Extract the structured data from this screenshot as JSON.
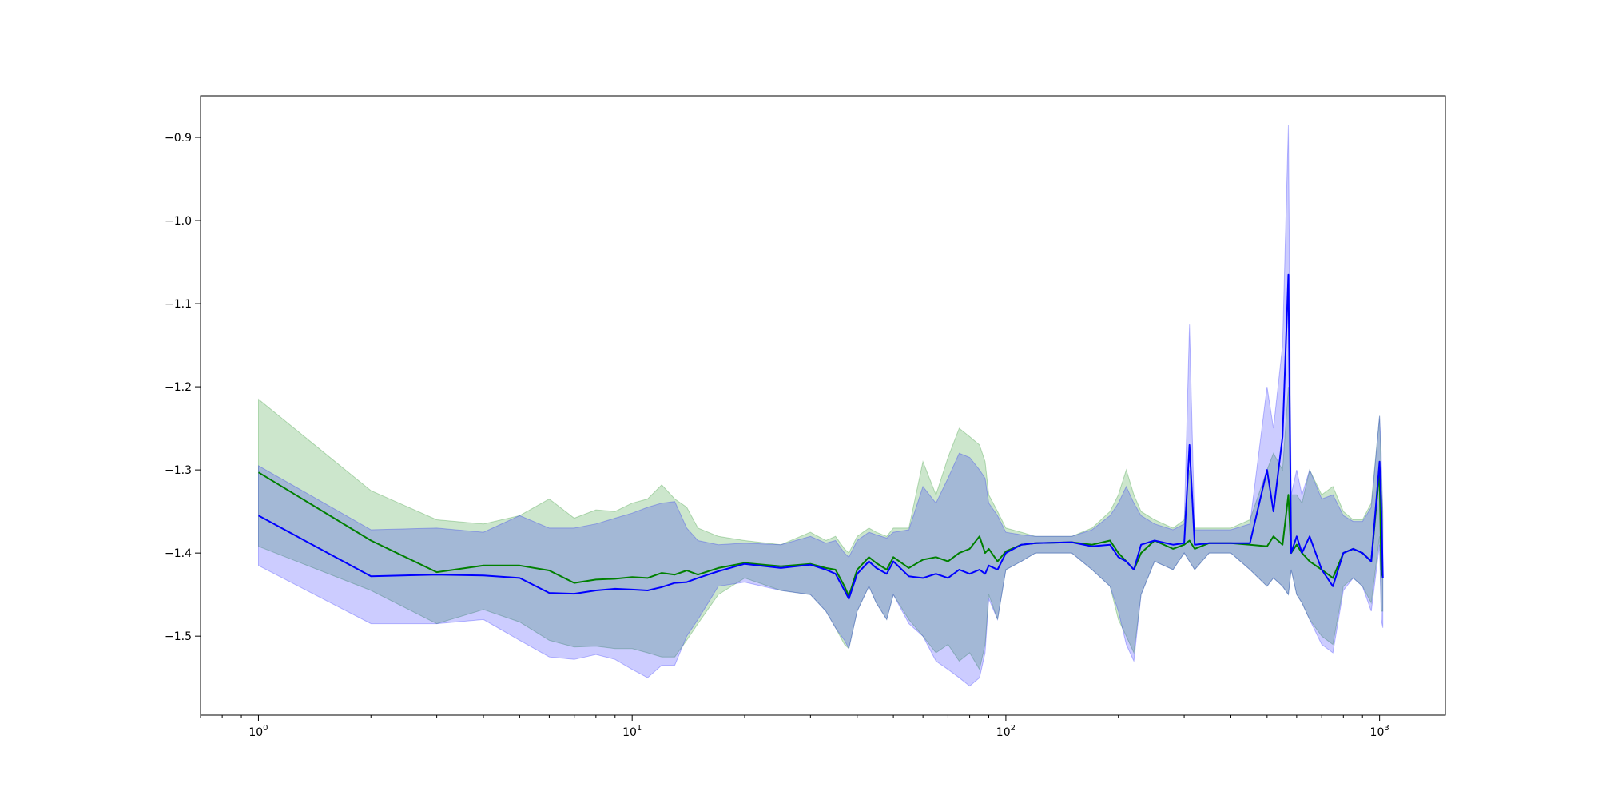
{
  "chart_data": {
    "type": "line",
    "title": "",
    "xlabel": "",
    "ylabel": "",
    "xscale": "log",
    "xlim": [
      0.7,
      1500
    ],
    "ylim": [
      -1.595,
      -0.85
    ],
    "grid": false,
    "legend": "none",
    "x_ticks": [
      {
        "value": 1,
        "base": "10",
        "exp": "0"
      },
      {
        "value": 10,
        "base": "10",
        "exp": "1"
      },
      {
        "value": 100,
        "base": "10",
        "exp": "2"
      },
      {
        "value": 1000,
        "base": "10",
        "exp": "3"
      }
    ],
    "y_ticks": [
      {
        "value": -0.9,
        "label": "−0.9"
      },
      {
        "value": -1.0,
        "label": "−1.0"
      },
      {
        "value": -1.1,
        "label": "−1.1"
      },
      {
        "value": -1.2,
        "label": "−1.2"
      },
      {
        "value": -1.3,
        "label": "−1.3"
      },
      {
        "value": -1.4,
        "label": "−1.4"
      },
      {
        "value": -1.5,
        "label": "−1.5"
      }
    ],
    "series": [
      {
        "color": "#008000",
        "band_color": "#008000",
        "x": [
          1,
          2,
          3,
          4,
          5,
          6,
          7,
          8,
          9,
          10,
          11,
          12,
          13,
          14,
          15,
          17,
          20,
          25,
          30,
          33,
          35,
          37,
          38,
          40,
          43,
          45,
          48,
          50,
          55,
          60,
          65,
          70,
          75,
          80,
          85,
          88,
          90,
          95,
          100,
          110,
          120,
          150,
          170,
          190,
          200,
          210,
          220,
          230,
          250,
          280,
          300,
          310,
          320,
          350,
          400,
          450,
          500,
          520,
          550,
          570,
          580,
          600,
          620,
          650,
          700,
          750,
          800,
          850,
          900,
          950,
          1000,
          1010,
          1020
        ],
        "y": [
          -1.303,
          -1.385,
          -1.423,
          -1.415,
          -1.415,
          -1.421,
          -1.436,
          -1.432,
          -1.431,
          -1.429,
          -1.43,
          -1.424,
          -1.426,
          -1.421,
          -1.426,
          -1.418,
          -1.412,
          -1.416,
          -1.413,
          -1.418,
          -1.42,
          -1.44,
          -1.452,
          -1.42,
          -1.405,
          -1.412,
          -1.42,
          -1.405,
          -1.418,
          -1.408,
          -1.405,
          -1.41,
          -1.4,
          -1.395,
          -1.38,
          -1.4,
          -1.395,
          -1.41,
          -1.398,
          -1.39,
          -1.388,
          -1.387,
          -1.39,
          -1.385,
          -1.4,
          -1.41,
          -1.42,
          -1.4,
          -1.385,
          -1.395,
          -1.39,
          -1.385,
          -1.395,
          -1.388,
          -1.388,
          -1.39,
          -1.392,
          -1.38,
          -1.39,
          -1.33,
          -1.4,
          -1.39,
          -1.4,
          -1.41,
          -1.42,
          -1.43,
          -1.4,
          -1.395,
          -1.4,
          -1.41,
          -1.3,
          -1.42,
          -1.43
        ],
        "lower": [
          -1.392,
          -1.445,
          -1.485,
          -1.468,
          -1.483,
          -1.505,
          -1.513,
          -1.512,
          -1.515,
          -1.515,
          -1.52,
          -1.525,
          -1.525,
          -1.505,
          -1.485,
          -1.45,
          -1.43,
          -1.445,
          -1.45,
          -1.47,
          -1.49,
          -1.51,
          -1.515,
          -1.47,
          -1.44,
          -1.46,
          -1.48,
          -1.45,
          -1.48,
          -1.5,
          -1.52,
          -1.51,
          -1.53,
          -1.52,
          -1.54,
          -1.51,
          -1.45,
          -1.48,
          -1.42,
          -1.41,
          -1.4,
          -1.4,
          -1.42,
          -1.44,
          -1.48,
          -1.5,
          -1.52,
          -1.45,
          -1.41,
          -1.42,
          -1.4,
          -1.41,
          -1.42,
          -1.4,
          -1.4,
          -1.42,
          -1.44,
          -1.43,
          -1.44,
          -1.45,
          -1.42,
          -1.45,
          -1.46,
          -1.48,
          -1.5,
          -1.51,
          -1.44,
          -1.43,
          -1.44,
          -1.46,
          -1.38,
          -1.47,
          -1.47
        ],
        "upper": [
          -1.215,
          -1.325,
          -1.36,
          -1.365,
          -1.355,
          -1.335,
          -1.358,
          -1.348,
          -1.35,
          -1.34,
          -1.335,
          -1.318,
          -1.335,
          -1.345,
          -1.37,
          -1.38,
          -1.385,
          -1.39,
          -1.375,
          -1.385,
          -1.38,
          -1.395,
          -1.4,
          -1.38,
          -1.37,
          -1.375,
          -1.38,
          -1.37,
          -1.37,
          -1.29,
          -1.33,
          -1.285,
          -1.25,
          -1.26,
          -1.27,
          -1.29,
          -1.33,
          -1.35,
          -1.37,
          -1.375,
          -1.38,
          -1.38,
          -1.37,
          -1.35,
          -1.33,
          -1.3,
          -1.33,
          -1.35,
          -1.36,
          -1.37,
          -1.36,
          -1.3,
          -1.37,
          -1.37,
          -1.37,
          -1.36,
          -1.3,
          -1.28,
          -1.3,
          -1.2,
          -1.33,
          -1.33,
          -1.34,
          -1.3,
          -1.33,
          -1.32,
          -1.35,
          -1.36,
          -1.36,
          -1.34,
          -1.235,
          -1.3,
          -1.35
        ]
      },
      {
        "color": "#0000ff",
        "band_color": "#0000ff",
        "x": [
          1,
          2,
          3,
          4,
          5,
          6,
          7,
          8,
          9,
          10,
          11,
          12,
          13,
          14,
          15,
          17,
          20,
          25,
          30,
          33,
          35,
          37,
          38,
          40,
          43,
          45,
          48,
          50,
          55,
          60,
          65,
          70,
          75,
          80,
          85,
          88,
          90,
          95,
          100,
          110,
          120,
          150,
          170,
          190,
          200,
          210,
          220,
          230,
          250,
          280,
          300,
          310,
          320,
          350,
          400,
          450,
          500,
          520,
          550,
          570,
          580,
          600,
          620,
          650,
          700,
          750,
          800,
          850,
          900,
          950,
          1000,
          1010,
          1020
        ],
        "y": [
          -1.355,
          -1.428,
          -1.426,
          -1.427,
          -1.43,
          -1.448,
          -1.449,
          -1.445,
          -1.443,
          -1.444,
          -1.445,
          -1.441,
          -1.436,
          -1.435,
          -1.43,
          -1.422,
          -1.413,
          -1.418,
          -1.414,
          -1.42,
          -1.425,
          -1.445,
          -1.455,
          -1.425,
          -1.41,
          -1.418,
          -1.425,
          -1.41,
          -1.428,
          -1.43,
          -1.425,
          -1.43,
          -1.42,
          -1.425,
          -1.42,
          -1.425,
          -1.415,
          -1.42,
          -1.4,
          -1.39,
          -1.388,
          -1.387,
          -1.392,
          -1.39,
          -1.405,
          -1.41,
          -1.42,
          -1.39,
          -1.385,
          -1.39,
          -1.388,
          -1.27,
          -1.39,
          -1.388,
          -1.388,
          -1.388,
          -1.3,
          -1.35,
          -1.26,
          -1.065,
          -1.4,
          -1.38,
          -1.4,
          -1.38,
          -1.42,
          -1.44,
          -1.4,
          -1.395,
          -1.4,
          -1.41,
          -1.29,
          -1.34,
          -1.43
        ],
        "lower": [
          -1.415,
          -1.485,
          -1.485,
          -1.48,
          -1.505,
          -1.525,
          -1.528,
          -1.522,
          -1.528,
          -1.54,
          -1.55,
          -1.535,
          -1.535,
          -1.5,
          -1.48,
          -1.44,
          -1.435,
          -1.445,
          -1.45,
          -1.47,
          -1.49,
          -1.505,
          -1.515,
          -1.47,
          -1.44,
          -1.46,
          -1.48,
          -1.45,
          -1.485,
          -1.5,
          -1.53,
          -1.54,
          -1.55,
          -1.56,
          -1.55,
          -1.52,
          -1.455,
          -1.48,
          -1.42,
          -1.41,
          -1.4,
          -1.4,
          -1.42,
          -1.44,
          -1.47,
          -1.51,
          -1.53,
          -1.45,
          -1.41,
          -1.42,
          -1.4,
          -1.41,
          -1.42,
          -1.4,
          -1.4,
          -1.42,
          -1.44,
          -1.43,
          -1.44,
          -1.45,
          -1.42,
          -1.45,
          -1.46,
          -1.48,
          -1.51,
          -1.52,
          -1.445,
          -1.43,
          -1.44,
          -1.47,
          -1.39,
          -1.48,
          -1.49
        ],
        "upper": [
          -1.295,
          -1.372,
          -1.37,
          -1.375,
          -1.355,
          -1.37,
          -1.37,
          -1.365,
          -1.358,
          -1.352,
          -1.345,
          -1.34,
          -1.338,
          -1.37,
          -1.385,
          -1.39,
          -1.388,
          -1.39,
          -1.38,
          -1.388,
          -1.385,
          -1.4,
          -1.405,
          -1.385,
          -1.375,
          -1.378,
          -1.382,
          -1.375,
          -1.372,
          -1.32,
          -1.34,
          -1.31,
          -1.28,
          -1.285,
          -1.3,
          -1.31,
          -1.34,
          -1.355,
          -1.375,
          -1.378,
          -1.38,
          -1.38,
          -1.372,
          -1.355,
          -1.34,
          -1.32,
          -1.34,
          -1.355,
          -1.365,
          -1.372,
          -1.365,
          -1.125,
          -1.372,
          -1.372,
          -1.372,
          -1.365,
          -1.2,
          -1.25,
          -1.15,
          -0.885,
          -1.33,
          -1.3,
          -1.33,
          -1.3,
          -1.335,
          -1.33,
          -1.355,
          -1.362,
          -1.362,
          -1.345,
          -1.235,
          -1.28,
          -1.36
        ]
      }
    ]
  }
}
